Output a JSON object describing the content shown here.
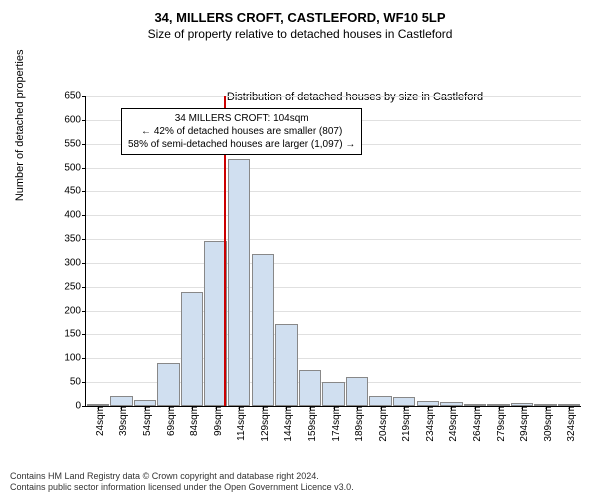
{
  "title": "34, MILLERS CROFT, CASTLEFORD, WF10 5LP",
  "subtitle": "Size of property relative to detached houses in Castleford",
  "y_axis_label": "Number of detached properties",
  "x_axis_label": "Distribution of detached houses by size in Castleford",
  "annotation": {
    "line1": "34 MILLERS CROFT: 104sqm",
    "line2": "← 42% of detached houses are smaller (807)",
    "line3": "58% of semi-detached houses are larger (1,097) →"
  },
  "footer": {
    "line1": "Contains HM Land Registry data © Crown copyright and database right 2024.",
    "line2": "Contains public sector information licensed under the Open Government Licence v3.0."
  },
  "chart": {
    "type": "histogram",
    "ylim": [
      0,
      650
    ],
    "ytick_step": 50,
    "x_categories": [
      "24sqm",
      "39sqm",
      "54sqm",
      "69sqm",
      "84sqm",
      "99sqm",
      "114sqm",
      "129sqm",
      "144sqm",
      "159sqm",
      "174sqm",
      "189sqm",
      "204sqm",
      "219sqm",
      "234sqm",
      "249sqm",
      "264sqm",
      "279sqm",
      "294sqm",
      "309sqm",
      "324sqm"
    ],
    "values": [
      5,
      20,
      12,
      90,
      240,
      345,
      518,
      318,
      172,
      75,
      50,
      60,
      22,
      18,
      10,
      8,
      5,
      3,
      6,
      3,
      2
    ],
    "bar_color": "#d0dff0",
    "bar_border": "#888888",
    "grid_color": "#e0e0e0",
    "background_color": "#ffffff",
    "marker_value": 104,
    "marker_color": "#cc0000",
    "title_fontsize": 13,
    "subtitle_fontsize": 12,
    "label_fontsize": 11,
    "tick_fontsize": 10
  }
}
